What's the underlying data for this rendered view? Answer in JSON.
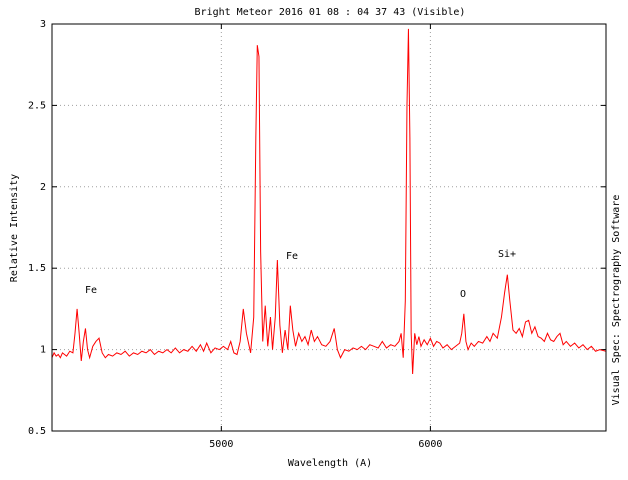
{
  "chart_data": {
    "type": "line",
    "title": "Bright Meteor 2016 01 08 : 04 37  43 (Visible)",
    "x_label": "Wavelength (A)",
    "y_label": "Relative Intensity",
    "side_text": "Visual Spec: Spectrography Software",
    "annotations": [
      "Fe",
      "Fe",
      "O",
      "Si+"
    ],
    "color": "#ff0000",
    "grid": true,
    "xlim": [
      4190,
      6840
    ],
    "ylim": [
      0.5,
      3
    ],
    "xticks": [
      5000,
      6000
    ],
    "yticks": [
      0.5,
      1,
      1.5,
      2,
      2.5,
      3
    ],
    "x": [
      4190,
      4200,
      4210,
      4220,
      4230,
      4240,
      4250,
      4260,
      4275,
      4290,
      4300,
      4310,
      4320,
      4330,
      4340,
      4350,
      4360,
      4370,
      4385,
      4400,
      4415,
      4430,
      4445,
      4460,
      4480,
      4500,
      4520,
      4540,
      4560,
      4580,
      4600,
      4620,
      4640,
      4660,
      4680,
      4700,
      4720,
      4740,
      4760,
      4780,
      4800,
      4820,
      4840,
      4860,
      4880,
      4900,
      4915,
      4930,
      4950,
      4970,
      4990,
      5010,
      5030,
      5045,
      5060,
      5075,
      5090,
      5105,
      5120,
      5140,
      5155,
      5165,
      5172,
      5180,
      5188,
      5198,
      5210,
      5222,
      5235,
      5245,
      5258,
      5268,
      5280,
      5292,
      5305,
      5318,
      5330,
      5342,
      5355,
      5370,
      5385,
      5400,
      5415,
      5430,
      5445,
      5460,
      5480,
      5500,
      5520,
      5540,
      5555,
      5570,
      5590,
      5610,
      5630,
      5650,
      5670,
      5690,
      5710,
      5730,
      5750,
      5770,
      5790,
      5810,
      5830,
      5850,
      5860,
      5870,
      5880,
      5888,
      5895,
      5902,
      5908,
      5915,
      5925,
      5935,
      5945,
      5955,
      5970,
      5985,
      6000,
      6015,
      6030,
      6045,
      6060,
      6080,
      6100,
      6120,
      6140,
      6150,
      6160,
      6170,
      6180,
      6195,
      6210,
      6230,
      6250,
      6270,
      6285,
      6300,
      6320,
      6340,
      6355,
      6368,
      6380,
      6395,
      6410,
      6425,
      6440,
      6455,
      6470,
      6485,
      6500,
      6515,
      6530,
      6545,
      6560,
      6575,
      6590,
      6605,
      6620,
      6635,
      6650,
      6670,
      6690,
      6710,
      6730,
      6750,
      6770,
      6790,
      6810,
      6840
    ],
    "values": [
      0.95,
      0.98,
      0.96,
      0.97,
      0.95,
      0.98,
      0.97,
      0.96,
      0.99,
      0.98,
      1.1,
      1.25,
      1.1,
      0.93,
      1.05,
      1.13,
      1.0,
      0.95,
      1.02,
      1.05,
      1.07,
      0.98,
      0.95,
      0.97,
      0.96,
      0.98,
      0.97,
      0.99,
      0.96,
      0.98,
      0.97,
      0.99,
      0.98,
      1.0,
      0.97,
      0.99,
      0.98,
      1.0,
      0.98,
      1.01,
      0.98,
      1.0,
      0.99,
      1.02,
      0.99,
      1.03,
      0.99,
      1.04,
      0.98,
      1.01,
      1.0,
      1.02,
      1.0,
      1.05,
      0.98,
      0.97,
      1.05,
      1.25,
      1.1,
      0.98,
      1.2,
      2.3,
      2.87,
      2.8,
      1.6,
      1.05,
      1.27,
      1.02,
      1.2,
      1.0,
      1.2,
      1.55,
      1.15,
      0.98,
      1.12,
      1.0,
      1.27,
      1.12,
      1.02,
      1.1,
      1.05,
      1.08,
      1.03,
      1.12,
      1.05,
      1.08,
      1.03,
      1.02,
      1.05,
      1.13,
      1.0,
      0.95,
      1.0,
      0.99,
      1.01,
      1.0,
      1.02,
      1.0,
      1.03,
      1.02,
      1.01,
      1.05,
      1.01,
      1.03,
      1.02,
      1.05,
      1.1,
      0.95,
      1.3,
      2.5,
      2.97,
      2.3,
      1.1,
      0.85,
      1.1,
      1.03,
      1.08,
      1.02,
      1.06,
      1.03,
      1.07,
      1.02,
      1.05,
      1.04,
      1.01,
      1.03,
      1.0,
      1.02,
      1.04,
      1.1,
      1.22,
      1.05,
      1.0,
      1.04,
      1.02,
      1.05,
      1.04,
      1.08,
      1.05,
      1.1,
      1.07,
      1.2,
      1.35,
      1.46,
      1.3,
      1.12,
      1.1,
      1.13,
      1.08,
      1.17,
      1.18,
      1.1,
      1.14,
      1.08,
      1.07,
      1.05,
      1.1,
      1.06,
      1.05,
      1.08,
      1.1,
      1.03,
      1.05,
      1.02,
      1.04,
      1.01,
      1.03,
      1.0,
      1.02,
      0.99,
      1.0,
      0.99
    ]
  }
}
